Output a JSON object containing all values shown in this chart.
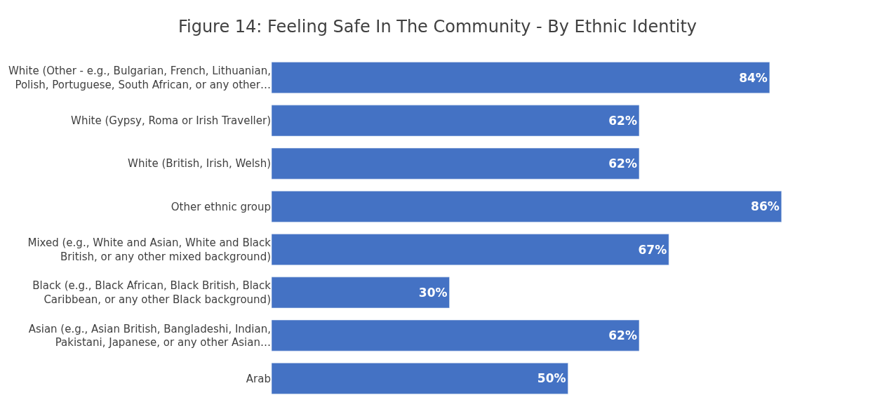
{
  "chart_data": {
    "type": "bar",
    "orientation": "horizontal",
    "title": "Figure 14: Feeling Safe In The Community - By Ethnic Identity",
    "categories": [
      "White (Other - e.g., Bulgarian, French, Lithuanian, Polish, Portuguese, South African, or any other…",
      "White (Gypsy, Roma or Irish Traveller)",
      "White (British, Irish, Welsh)",
      "Other ethnic group",
      "Mixed (e.g., White and Asian, White and Black British, or any other mixed background)",
      "Black (e.g., Black African, Black British, Black Caribbean, or any other Black background)",
      "Asian (e.g., Asian British, Bangladeshi, Indian, Pakistani, Japanese, or any other Asian…",
      "Arab"
    ],
    "values": [
      84,
      62,
      62,
      86,
      67,
      30,
      62,
      50
    ],
    "value_labels": [
      "84%",
      "62%",
      "62%",
      "86%",
      "67%",
      "30%",
      "62%",
      "50%"
    ],
    "color": "#4472c4",
    "legend": false
  }
}
